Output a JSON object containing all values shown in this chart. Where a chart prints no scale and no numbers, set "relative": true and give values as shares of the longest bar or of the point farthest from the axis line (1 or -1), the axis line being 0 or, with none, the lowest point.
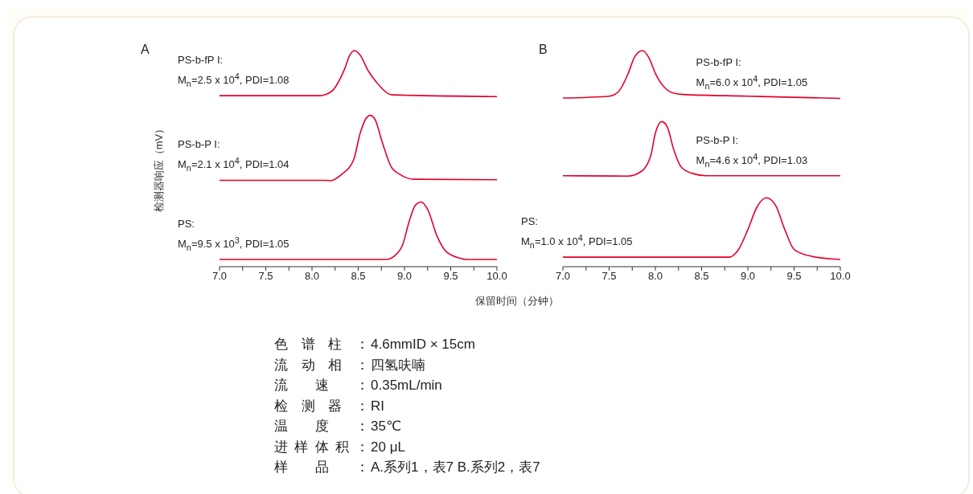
{
  "chart_data": [
    {
      "type": "line",
      "title": "A",
      "ylabel": "检测器响应（mV）",
      "xlabel": "保留时间（分钟）",
      "relative": true,
      "marker": "none",
      "line_style": "solid",
      "xlim": [
        7,
        10
      ],
      "xticks": [
        {
          "value": 7,
          "label": "7.0"
        },
        {
          "value": 7.25,
          "label": null
        },
        {
          "value": 7.5,
          "label": "7.5"
        },
        {
          "value": 7.75,
          "label": null
        },
        {
          "value": 8,
          "label": "8.0"
        },
        {
          "value": 8.25,
          "label": null
        },
        {
          "value": 8.5,
          "label": "8.5"
        },
        {
          "value": 8.75,
          "label": null
        },
        {
          "value": 9,
          "label": "9.0"
        },
        {
          "value": 9.25,
          "label": null
        },
        {
          "value": 9.5,
          "label": "9.5"
        },
        {
          "value": 9.75,
          "label": null
        },
        {
          "value": 10,
          "label": "10.0"
        }
      ],
      "series": [
        {
          "name": "PS-b-fP I:\nM$_{n}$=2.5 x 10$^{4}$, PDI=1.08",
          "color": "#e4002b",
          "x": [
            7.0,
            8.08,
            8.15,
            8.23,
            8.35,
            8.41,
            8.46,
            8.52,
            8.61,
            8.7,
            8.87,
            10.0
          ],
          "values": [
            0.784,
            0.784,
            0.79,
            0.812,
            0.909,
            0.979,
            1.0,
            0.979,
            0.902,
            0.847,
            0.788,
            0.78
          ]
        },
        {
          "name": "PS-b-P I:\nM$_{n}$=2.1 x 10$^{4}$, PDI=1.04",
          "color": "#e4002b",
          "x": [
            7.0,
            8.15,
            8.2,
            8.32,
            8.45,
            8.52,
            8.58,
            8.63,
            8.68,
            8.76,
            8.85,
            8.95,
            9.1,
            10.0
          ],
          "values": [
            0.379,
            0.379,
            0.377,
            0.407,
            0.477,
            0.603,
            0.672,
            0.69,
            0.672,
            0.561,
            0.449,
            0.407,
            0.384,
            0.382
          ]
        },
        {
          "name": "PS:\nM$_{n}$=9.5 x 10$^{3}$, PDI=1.05",
          "color": "#e4002b",
          "x": [
            7.0,
            8.8,
            8.9,
            8.98,
            9.05,
            9.12,
            9.18,
            9.25,
            9.35,
            9.45,
            9.6,
            9.67,
            10.0
          ],
          "values": [
            0,
            0,
            0.02,
            0.07,
            0.181,
            0.261,
            0.275,
            0.24,
            0.114,
            0.038,
            0.006,
            0,
            0
          ]
        }
      ]
    },
    {
      "type": "line",
      "title": "B",
      "relative": true,
      "marker": "none",
      "line_style": "solid",
      "xlim": [
        7,
        10
      ],
      "xticks": [
        {
          "value": 7,
          "label": "7.0"
        },
        {
          "value": 7.25,
          "label": null
        },
        {
          "value": 7.5,
          "label": "7.5"
        },
        {
          "value": 7.75,
          "label": null
        },
        {
          "value": 8,
          "label": "8.0"
        },
        {
          "value": 8.25,
          "label": null
        },
        {
          "value": 8.5,
          "label": "8.5"
        },
        {
          "value": 8.75,
          "label": null
        },
        {
          "value": 9,
          "label": "9.0"
        },
        {
          "value": 9.25,
          "label": null
        },
        {
          "value": 9.5,
          "label": "9.5"
        },
        {
          "value": 9.75,
          "label": null
        },
        {
          "value": 10,
          "label": "10.0"
        }
      ],
      "series": [
        {
          "name": "PS-b-fP I:\nM$_{n}$=6.0 x 10$^{4}$, PDI=1.05",
          "color": "#e4002b",
          "x": [
            7.0,
            7.5,
            7.6,
            7.7,
            7.78,
            7.86,
            7.93,
            8.0,
            8.1,
            8.2,
            8.3,
            9.0,
            10.0
          ],
          "values": [
            0.773,
            0.782,
            0.803,
            0.884,
            0.973,
            1.0,
            0.966,
            0.891,
            0.823,
            0.796,
            0.79,
            0.782,
            0.771
          ]
        },
        {
          "name": "PS-b-P I:\nM$_{n}$=4.6 x 10$^{4}$, PDI=1.03",
          "color": "#e4002b",
          "x": [
            7.0,
            7.7,
            7.85,
            7.95,
            8.0,
            8.07,
            8.13,
            8.2,
            8.28,
            8.4,
            8.55,
            10.0
          ],
          "values": [
            0.401,
            0.399,
            0.422,
            0.497,
            0.605,
            0.66,
            0.633,
            0.524,
            0.442,
            0.412,
            0.401,
            0.401
          ]
        },
        {
          "name": "PS:\nM$_{n}$=1.0 x 10$^{4}$, PDI=1.05",
          "color": "#e4002b",
          "x": [
            7.0,
            8.8,
            8.9,
            9.0,
            9.1,
            9.2,
            9.3,
            9.4,
            9.5,
            9.7,
            10.0
          ],
          "values": [
            0.011,
            0.011,
            0.048,
            0.143,
            0.252,
            0.295,
            0.259,
            0.143,
            0.048,
            0.014,
            0
          ]
        }
      ]
    },
    {
      "type": "other",
      "annotations": [
        "色谱柱：4.6mmID × 15cm",
        "流动相：四氢呋喃",
        "流速：0.35mL/min",
        "检测器：RI",
        "温度：35℃",
        "进样体积：20 μL",
        "样品：A.系列1，表7 B.系列2，表7"
      ]
    }
  ]
}
